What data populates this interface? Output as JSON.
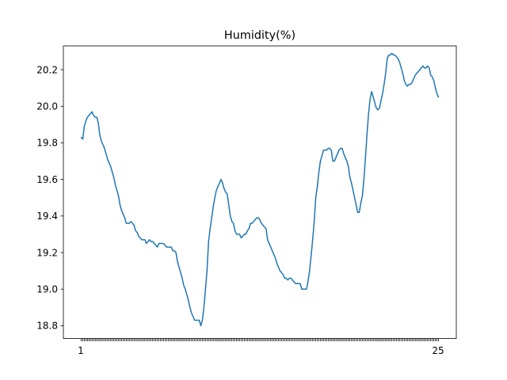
{
  "chart_data": {
    "type": "line",
    "title": "Humidity(%)",
    "xlabel": "",
    "ylabel": "",
    "ylim": [
      18.73,
      20.33
    ],
    "yticks": [
      "18.8",
      "19.0",
      "19.2",
      "19.4",
      "19.6",
      "19.8",
      "20.0",
      "20.2"
    ],
    "x_tick_first": "1",
    "x_tick_last": "25",
    "line_color": "#1f77b4",
    "series": [
      {
        "values": [
          19.83,
          19.82,
          19.89,
          19.92,
          19.94,
          19.95,
          19.96,
          19.97,
          19.95,
          19.94,
          19.94,
          19.91,
          19.84,
          19.81,
          19.79,
          19.77,
          19.74,
          19.71,
          19.69,
          19.67,
          19.64,
          19.61,
          19.57,
          19.54,
          19.51,
          19.46,
          19.43,
          19.41,
          19.39,
          19.36,
          19.36,
          19.36,
          19.37,
          19.36,
          19.35,
          19.32,
          19.31,
          19.29,
          19.28,
          19.27,
          19.27,
          19.27,
          19.25,
          19.26,
          19.27,
          19.26,
          19.26,
          19.25,
          19.24,
          19.23,
          19.25,
          19.25,
          19.25,
          19.25,
          19.24,
          19.23,
          19.23,
          19.23,
          19.23,
          19.21,
          19.21,
          19.2,
          19.15,
          19.12,
          19.09,
          19.06,
          19.02,
          19.0,
          18.97,
          18.94,
          18.9,
          18.87,
          18.85,
          18.83,
          18.83,
          18.83,
          18.83,
          18.8,
          18.83,
          18.9,
          19.0,
          19.1,
          19.26,
          19.33,
          19.39,
          19.45,
          19.5,
          19.54,
          19.56,
          19.58,
          19.6,
          19.58,
          19.55,
          19.53,
          19.52,
          19.46,
          19.4,
          19.37,
          19.36,
          19.32,
          19.3,
          19.3,
          19.3,
          19.28,
          19.29,
          19.3,
          19.3,
          19.32,
          19.33,
          19.36,
          19.36,
          19.37,
          19.38,
          19.39,
          19.39,
          19.38,
          19.36,
          19.35,
          19.34,
          19.33,
          19.27,
          19.25,
          19.23,
          19.21,
          19.19,
          19.17,
          19.14,
          19.12,
          19.1,
          19.09,
          19.08,
          19.06,
          19.06,
          19.05,
          19.06,
          19.06,
          19.05,
          19.04,
          19.03,
          19.03,
          19.03,
          19.03,
          19.0,
          19.0,
          19.0,
          19.0,
          19.04,
          19.1,
          19.18,
          19.27,
          19.37,
          19.5,
          19.56,
          19.64,
          19.7,
          19.73,
          19.76,
          19.76,
          19.76,
          19.77,
          19.77,
          19.76,
          19.7,
          19.7,
          19.72,
          19.74,
          19.76,
          19.77,
          19.77,
          19.74,
          19.72,
          19.7,
          19.67,
          19.61,
          19.58,
          19.54,
          19.5,
          19.46,
          19.42,
          19.42,
          19.47,
          19.51,
          19.6,
          19.72,
          19.85,
          19.96,
          20.04,
          20.08,
          20.05,
          20.02,
          19.99,
          19.98,
          19.99,
          20.03,
          20.07,
          20.12,
          20.18,
          20.26,
          20.28,
          20.28,
          20.29,
          20.28,
          20.28,
          20.27,
          20.26,
          20.24,
          20.21,
          20.18,
          20.14,
          20.12,
          20.11,
          20.12,
          20.12,
          20.13,
          20.15,
          20.17,
          20.18,
          20.19,
          20.2,
          20.21,
          20.22,
          20.21,
          20.21,
          20.22,
          20.21,
          20.17,
          20.16,
          20.14,
          20.1,
          20.07,
          20.05
        ]
      }
    ]
  }
}
